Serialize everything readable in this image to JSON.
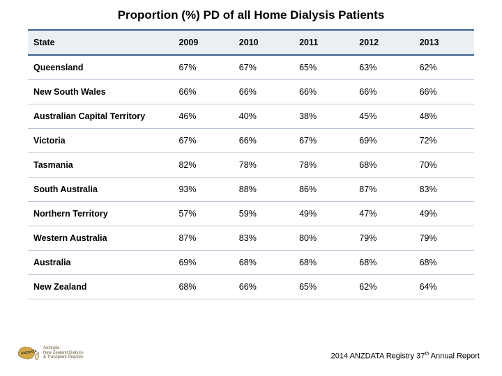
{
  "title": "Proportion (%) PD of all Home Dialysis Patients",
  "table": {
    "type": "table",
    "header_bg": "#eaeff4",
    "border_top_color": "#3a5f8a",
    "row_border_color": "#b8c5d6",
    "text_color": "#000000",
    "font_size": 12.5,
    "columns": [
      "State",
      "2009",
      "2010",
      "2011",
      "2012",
      "2013"
    ],
    "rows": [
      [
        "Queensland",
        "67%",
        "67%",
        "65%",
        "63%",
        "62%"
      ],
      [
        "New South Wales",
        "66%",
        "66%",
        "66%",
        "66%",
        "66%"
      ],
      [
        "Australian Capital Territory",
        "46%",
        "40%",
        "38%",
        "45%",
        "48%"
      ],
      [
        "Victoria",
        "67%",
        "66%",
        "67%",
        "69%",
        "72%"
      ],
      [
        "Tasmania",
        "82%",
        "78%",
        "78%",
        "68%",
        "70%"
      ],
      [
        "South Australia",
        "93%",
        "88%",
        "86%",
        "87%",
        "83%"
      ],
      [
        "Northern Territory",
        "57%",
        "59%",
        "49%",
        "47%",
        "49%"
      ],
      [
        "Western Australia",
        "87%",
        "83%",
        "80%",
        "79%",
        "79%"
      ],
      [
        "Australia",
        "69%",
        "68%",
        "68%",
        "68%",
        "68%"
      ],
      [
        "New Zealand",
        "68%",
        "66%",
        "65%",
        "62%",
        "64%"
      ]
    ]
  },
  "logo": {
    "line1": "Australia",
    "line2": "New Zealand Dialysis",
    "line3": "& Transplant Registry"
  },
  "footer": {
    "prefix": "2014 ANZDATA Registry 37",
    "sup": "th",
    "suffix": " Annual Report"
  }
}
